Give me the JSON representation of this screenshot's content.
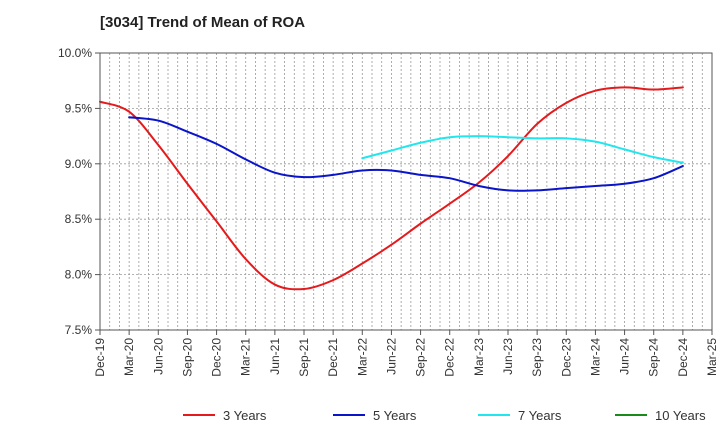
{
  "chart_data": {
    "type": "line",
    "title": "[3034]  Trend of Mean of ROA",
    "xlabel": "",
    "ylabel": "",
    "x_ticks": [
      "Dec-19",
      "Mar-20",
      "Jun-20",
      "Sep-20",
      "Dec-20",
      "Mar-21",
      "Jun-21",
      "Sep-21",
      "Dec-21",
      "Mar-22",
      "Jun-22",
      "Sep-22",
      "Dec-22",
      "Mar-23",
      "Jun-23",
      "Sep-23",
      "Dec-23",
      "Mar-24",
      "Jun-24",
      "Sep-24",
      "Dec-24",
      "Mar-25"
    ],
    "y_ticks": [
      "7.5%",
      "8.0%",
      "8.5%",
      "9.0%",
      "9.5%",
      "10.0%"
    ],
    "ylim": [
      7.5,
      10.0
    ],
    "grid": true,
    "legend_position": "bottom",
    "series": [
      {
        "name": "3 Years",
        "color": "#e41a1c",
        "points": [
          [
            "Dec-19",
            9.56
          ],
          [
            "Mar-20",
            9.47
          ],
          [
            "Jun-20",
            9.17
          ],
          [
            "Sep-20",
            8.82
          ],
          [
            "Dec-20",
            8.48
          ],
          [
            "Mar-21",
            8.14
          ],
          [
            "Jun-21",
            7.91
          ],
          [
            "Sep-21",
            7.87
          ],
          [
            "Dec-21",
            7.95
          ],
          [
            "Mar-22",
            8.1
          ],
          [
            "Jun-22",
            8.27
          ],
          [
            "Sep-22",
            8.46
          ],
          [
            "Dec-22",
            8.64
          ],
          [
            "Mar-23",
            8.83
          ],
          [
            "Jun-23",
            9.07
          ],
          [
            "Sep-23",
            9.36
          ],
          [
            "Dec-23",
            9.55
          ],
          [
            "Mar-24",
            9.66
          ],
          [
            "Jun-24",
            9.69
          ],
          [
            "Sep-24",
            9.67
          ],
          [
            "Dec-24",
            9.69
          ]
        ]
      },
      {
        "name": "5 Years",
        "color": "#0a14c8",
        "points": [
          [
            "Mar-20",
            9.42
          ],
          [
            "Jun-20",
            9.39
          ],
          [
            "Sep-20",
            9.29
          ],
          [
            "Dec-20",
            9.18
          ],
          [
            "Mar-21",
            9.04
          ],
          [
            "Jun-21",
            8.92
          ],
          [
            "Sep-21",
            8.88
          ],
          [
            "Dec-21",
            8.9
          ],
          [
            "Mar-22",
            8.94
          ],
          [
            "Jun-22",
            8.94
          ],
          [
            "Sep-22",
            8.9
          ],
          [
            "Dec-22",
            8.87
          ],
          [
            "Mar-23",
            8.8
          ],
          [
            "Jun-23",
            8.76
          ],
          [
            "Sep-23",
            8.76
          ],
          [
            "Dec-23",
            8.78
          ],
          [
            "Mar-24",
            8.8
          ],
          [
            "Jun-24",
            8.82
          ],
          [
            "Sep-24",
            8.87
          ],
          [
            "Dec-24",
            8.98
          ]
        ]
      },
      {
        "name": "7 Years",
        "color": "#22e6ee",
        "points": [
          [
            "Mar-22",
            9.05
          ],
          [
            "Jun-22",
            9.12
          ],
          [
            "Sep-22",
            9.19
          ],
          [
            "Dec-22",
            9.24
          ],
          [
            "Mar-23",
            9.25
          ],
          [
            "Jun-23",
            9.24
          ],
          [
            "Sep-23",
            9.23
          ],
          [
            "Dec-23",
            9.23
          ],
          [
            "Mar-24",
            9.2
          ],
          [
            "Jun-24",
            9.13
          ],
          [
            "Sep-24",
            9.06
          ],
          [
            "Dec-24",
            9.01
          ]
        ]
      },
      {
        "name": "10 Years",
        "color": "#1a8a1a",
        "points": []
      }
    ]
  }
}
